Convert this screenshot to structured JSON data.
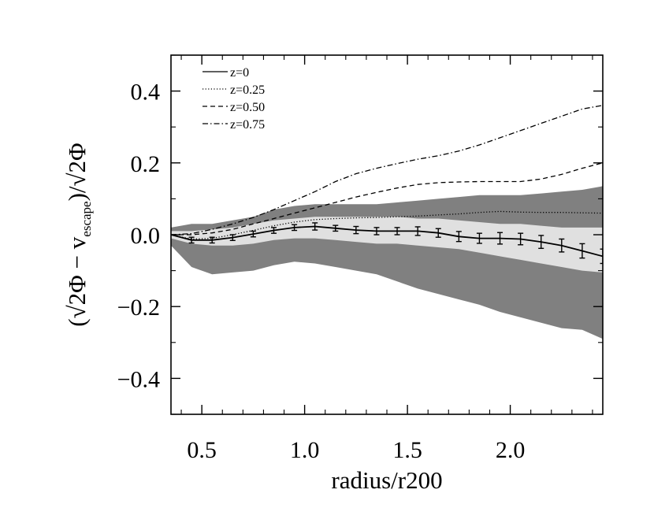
{
  "chart_data": {
    "type": "line",
    "title": "",
    "xlabel": "radius/r200",
    "ylabel": {
      "open": "(",
      "sqrt1": "√",
      "part1": "2Φ − v",
      "subscript": "escape",
      "part2": ")/",
      "sqrt2": "√",
      "part3": "2Φ"
    },
    "xlim": [
      0.35,
      2.45
    ],
    "ylim": [
      -0.5,
      0.5
    ],
    "xticks": [
      0.5,
      1.0,
      1.5,
      2.0
    ],
    "xtick_labels": [
      "0.5",
      "1.0",
      "1.5",
      "2.0"
    ],
    "yticks": [
      -0.4,
      -0.2,
      0.0,
      0.2,
      0.4
    ],
    "ytick_labels": [
      "−0.4",
      "−0.2",
      "0.0",
      "0.2",
      "0.4"
    ],
    "legend": {
      "placement": "top-left",
      "entries": [
        {
          "label": "z=0",
          "style": "solid"
        },
        {
          "label": "z=0.25",
          "style": "dotted"
        },
        {
          "label": "z=0.50",
          "style": "dashed"
        },
        {
          "label": "z=0.75",
          "style": "dashdot"
        }
      ]
    },
    "bands": [
      {
        "name": "outer band",
        "color": "#808080",
        "x": [
          0.35,
          0.45,
          0.55,
          0.65,
          0.75,
          0.85,
          0.95,
          1.05,
          1.15,
          1.25,
          1.35,
          1.45,
          1.55,
          1.65,
          1.75,
          1.85,
          1.95,
          2.05,
          2.15,
          2.25,
          2.35,
          2.45
        ],
        "upper": [
          0.02,
          0.03,
          0.03,
          0.04,
          0.05,
          0.07,
          0.08,
          0.085,
          0.085,
          0.085,
          0.085,
          0.09,
          0.095,
          0.1,
          0.105,
          0.11,
          0.11,
          0.11,
          0.115,
          0.12,
          0.125,
          0.135
        ],
        "lower": [
          -0.03,
          -0.09,
          -0.11,
          -0.105,
          -0.1,
          -0.085,
          -0.075,
          -0.08,
          -0.09,
          -0.1,
          -0.11,
          -0.13,
          -0.15,
          -0.165,
          -0.18,
          -0.195,
          -0.215,
          -0.23,
          -0.245,
          -0.26,
          -0.265,
          -0.29
        ]
      },
      {
        "name": "inner band",
        "color": "#e0e0e0",
        "x": [
          0.35,
          0.45,
          0.55,
          0.65,
          0.75,
          0.85,
          0.95,
          1.05,
          1.15,
          1.25,
          1.35,
          1.45,
          1.55,
          1.65,
          1.75,
          1.85,
          1.95,
          2.05,
          2.15,
          2.25,
          2.35,
          2.45
        ],
        "upper": [
          0.01,
          0.01,
          0.015,
          0.02,
          0.03,
          0.04,
          0.045,
          0.05,
          0.05,
          0.05,
          0.05,
          0.05,
          0.045,
          0.045,
          0.04,
          0.035,
          0.03,
          0.03,
          0.025,
          0.02,
          0.02,
          0.02
        ],
        "lower": [
          -0.01,
          -0.025,
          -0.03,
          -0.03,
          -0.025,
          -0.015,
          -0.01,
          -0.01,
          -0.015,
          -0.02,
          -0.025,
          -0.025,
          -0.03,
          -0.035,
          -0.04,
          -0.05,
          -0.06,
          -0.07,
          -0.08,
          -0.09,
          -0.1,
          -0.105
        ]
      }
    ],
    "series": [
      {
        "name": "z=0",
        "style": "solid",
        "x": [
          0.35,
          0.45,
          0.55,
          0.65,
          0.75,
          0.85,
          0.95,
          1.05,
          1.15,
          1.25,
          1.35,
          1.45,
          1.55,
          1.65,
          1.75,
          1.85,
          1.95,
          2.05,
          2.15,
          2.25,
          2.35,
          2.45
        ],
        "values": [
          0.0,
          -0.015,
          -0.015,
          -0.008,
          0.002,
          0.012,
          0.02,
          0.023,
          0.018,
          0.013,
          0.01,
          0.01,
          0.01,
          0.005,
          -0.005,
          -0.01,
          -0.01,
          -0.012,
          -0.02,
          -0.03,
          -0.045,
          -0.06
        ]
      },
      {
        "name": "z=0.25",
        "style": "dotted",
        "x": [
          0.35,
          0.45,
          0.55,
          0.65,
          0.75,
          0.85,
          0.95,
          1.05,
          1.15,
          1.25,
          1.35,
          1.45,
          1.55,
          1.65,
          1.75,
          1.85,
          1.95,
          2.05,
          2.15,
          2.25,
          2.35,
          2.45
        ],
        "values": [
          0.0,
          -0.012,
          -0.01,
          0.0,
          0.012,
          0.025,
          0.035,
          0.042,
          0.045,
          0.047,
          0.048,
          0.05,
          0.052,
          0.055,
          0.058,
          0.062,
          0.065,
          0.063,
          0.062,
          0.062,
          0.061,
          0.06
        ]
      },
      {
        "name": "z=0.50",
        "style": "dashed",
        "x": [
          0.35,
          0.45,
          0.55,
          0.65,
          0.75,
          0.85,
          0.95,
          1.05,
          1.15,
          1.25,
          1.35,
          1.45,
          1.55,
          1.65,
          1.75,
          1.85,
          1.95,
          2.05,
          2.15,
          2.25,
          2.35,
          2.45
        ],
        "values": [
          0.0,
          0.0,
          0.005,
          0.015,
          0.03,
          0.045,
          0.06,
          0.075,
          0.09,
          0.105,
          0.118,
          0.13,
          0.14,
          0.145,
          0.147,
          0.148,
          0.148,
          0.148,
          0.155,
          0.168,
          0.185,
          0.2
        ]
      },
      {
        "name": "z=0.75",
        "style": "dashdot",
        "x": [
          0.35,
          0.45,
          0.55,
          0.65,
          0.75,
          0.85,
          0.95,
          1.05,
          1.15,
          1.25,
          1.35,
          1.45,
          1.55,
          1.65,
          1.75,
          1.85,
          1.95,
          2.05,
          2.15,
          2.25,
          2.35,
          2.45
        ],
        "values": [
          0.0,
          0.003,
          0.015,
          0.03,
          0.048,
          0.07,
          0.095,
          0.12,
          0.148,
          0.17,
          0.185,
          0.198,
          0.21,
          0.22,
          0.233,
          0.25,
          0.27,
          0.29,
          0.31,
          0.33,
          0.35,
          0.36
        ]
      }
    ],
    "error_bars": {
      "series": "z=0",
      "x": [
        0.45,
        0.55,
        0.65,
        0.75,
        0.85,
        0.95,
        1.05,
        1.15,
        1.25,
        1.35,
        1.45,
        1.55,
        1.65,
        1.75,
        1.85,
        1.95,
        2.05,
        2.15,
        2.25,
        2.35,
        2.45
      ],
      "y": [
        -0.015,
        -0.015,
        -0.008,
        0.002,
        0.012,
        0.02,
        0.023,
        0.018,
        0.013,
        0.01,
        0.01,
        0.01,
        0.005,
        -0.005,
        -0.01,
        -0.01,
        -0.012,
        -0.02,
        -0.03,
        -0.045,
        -0.06
      ],
      "err": [
        0.008,
        0.008,
        0.008,
        0.008,
        0.008,
        0.008,
        0.01,
        0.008,
        0.01,
        0.01,
        0.01,
        0.012,
        0.012,
        0.014,
        0.014,
        0.016,
        0.016,
        0.018,
        0.018,
        0.02,
        0.02
      ]
    }
  }
}
